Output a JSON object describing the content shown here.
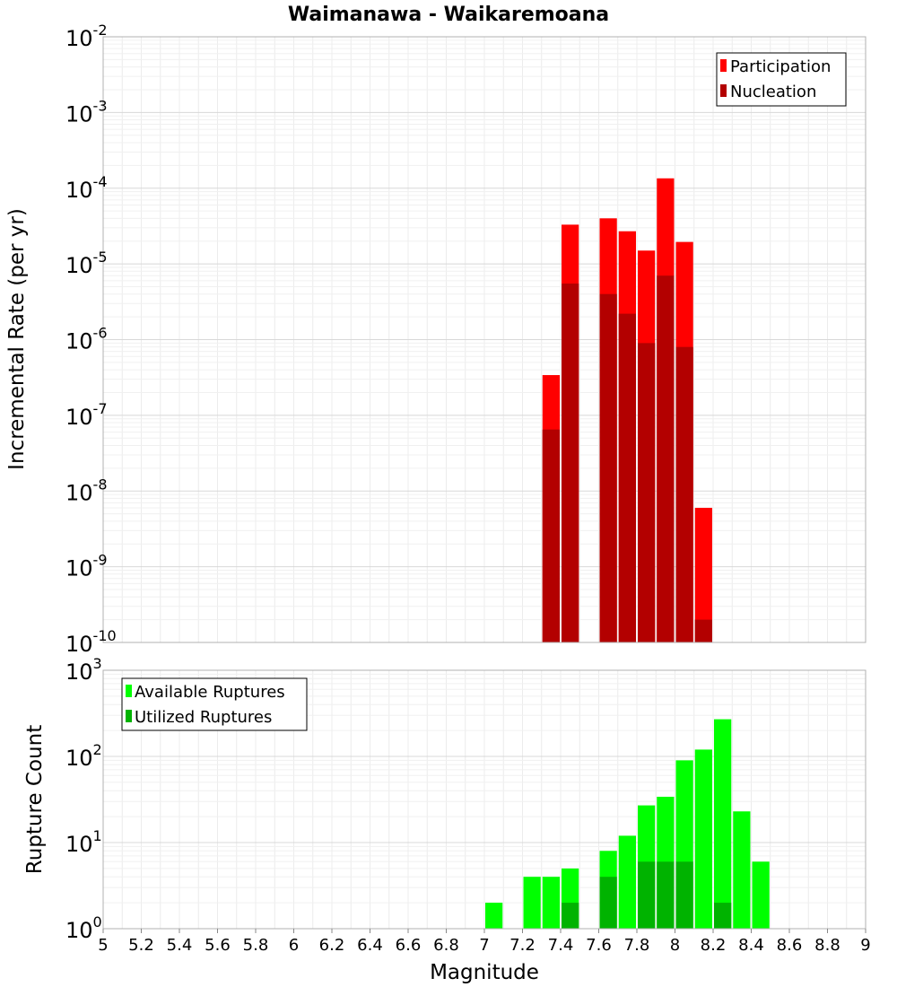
{
  "chart_data": {
    "title": "Waimanawa - Waikaremoana",
    "xlabel": "Magnitude",
    "xlim": [
      5,
      9
    ],
    "x_ticks": [
      "5",
      "5.2",
      "5.4",
      "5.6",
      "5.8",
      "6",
      "6.2",
      "6.4",
      "6.6",
      "6.8",
      "7",
      "7.2",
      "7.4",
      "7.6",
      "7.8",
      "8",
      "8.2",
      "8.4",
      "8.6",
      "8.8",
      "9"
    ],
    "bin_width": 0.1,
    "panels": [
      {
        "type": "bar",
        "ylabel": "Incremental Rate (per yr)",
        "yscale": "log",
        "ylim_exp": [
          -10,
          -2
        ],
        "grid": true,
        "legend_position": "top-right",
        "series": [
          {
            "name": "Participation",
            "color": "#ff0000",
            "x": [
              7.35,
              7.45,
              7.65,
              7.75,
              7.85,
              7.95,
              8.05,
              8.15
            ],
            "values": [
              3.4e-07,
              3.3e-05,
              4e-05,
              2.7e-05,
              1.5e-05,
              0.000135,
              1.95e-05,
              6e-09
            ]
          },
          {
            "name": "Nucleation",
            "color": "#b30000",
            "x": [
              7.35,
              7.45,
              7.65,
              7.75,
              7.85,
              7.95,
              8.05,
              8.15
            ],
            "values": [
              6.5e-08,
              5.5e-06,
              4e-06,
              2.2e-06,
              9e-07,
              7e-06,
              8e-07,
              2e-10
            ]
          }
        ]
      },
      {
        "type": "bar",
        "ylabel": "Rupture Count",
        "yscale": "log",
        "ylim_exp": [
          0,
          3
        ],
        "grid": true,
        "legend_position": "top-left",
        "series": [
          {
            "name": "Available Ruptures",
            "color": "#00ff00",
            "x": [
              6.65,
              7.05,
              7.15,
              7.25,
              7.35,
              7.45,
              7.55,
              7.65,
              7.75,
              7.85,
              7.95,
              8.05,
              8.15,
              8.25,
              8.35,
              8.45
            ],
            "values": [
              1,
              2,
              1,
              4,
              4,
              5,
              1,
              8,
              12,
              27,
              34,
              90,
              120,
              270,
              23,
              6
            ]
          },
          {
            "name": "Utilized Ruptures",
            "color": "#00b300",
            "x": [
              7.25,
              7.35,
              7.45,
              7.65,
              7.75,
              7.85,
              7.95,
              8.05,
              8.15,
              8.25
            ],
            "values": [
              1,
              1,
              2,
              4,
              1,
              6,
              6,
              6,
              1,
              2
            ]
          }
        ]
      }
    ]
  }
}
